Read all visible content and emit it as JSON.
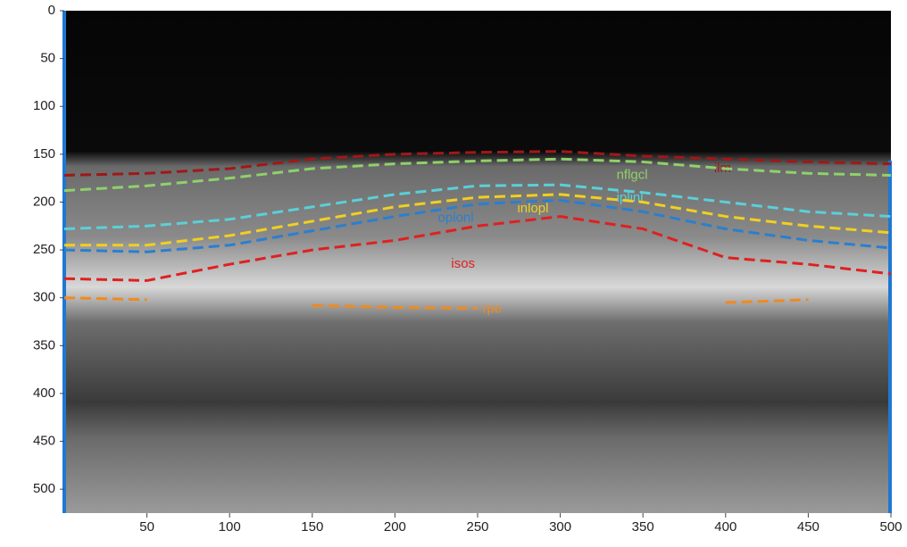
{
  "chart_data": {
    "type": "line",
    "x": [
      0,
      50,
      100,
      150,
      200,
      250,
      300,
      350,
      400,
      450,
      500
    ],
    "series": [
      {
        "name": "ilm",
        "color": "#a01818",
        "values": [
          172,
          170,
          165,
          155,
          150,
          148,
          147,
          152,
          155,
          158,
          160
        ]
      },
      {
        "name": "nflgcl",
        "color": "#8fd16a",
        "values": [
          188,
          183,
          175,
          165,
          160,
          157,
          155,
          158,
          165,
          170,
          172
        ]
      },
      {
        "name": "iplinl",
        "color": "#5ad0d8",
        "values": [
          228,
          225,
          218,
          205,
          192,
          183,
          182,
          190,
          200,
          210,
          215
        ]
      },
      {
        "name": "inlopl",
        "color": "#f0d020",
        "values": [
          245,
          245,
          235,
          220,
          205,
          195,
          192,
          200,
          215,
          225,
          232
        ]
      },
      {
        "name": "oplonl",
        "color": "#2a7fd0",
        "values": [
          250,
          252,
          245,
          230,
          215,
          202,
          198,
          210,
          228,
          240,
          248
        ]
      },
      {
        "name": "isos",
        "color": "#e02020",
        "values": [
          280,
          282,
          265,
          250,
          240,
          225,
          215,
          228,
          258,
          265,
          275
        ]
      },
      {
        "name": "rpe",
        "color": "#f08a20",
        "values": [
          300,
          302,
          null,
          308,
          310,
          311,
          null,
          null,
          305,
          302,
          null
        ]
      }
    ],
    "xlim": [
      0,
      500
    ],
    "xticks": [
      50,
      100,
      150,
      200,
      250,
      300,
      350,
      400,
      450,
      500
    ],
    "ylim": [
      0,
      525
    ],
    "yticks": [
      0,
      50,
      100,
      150,
      200,
      250,
      300,
      350,
      400,
      450,
      500
    ],
    "y_reversed": true
  }
}
